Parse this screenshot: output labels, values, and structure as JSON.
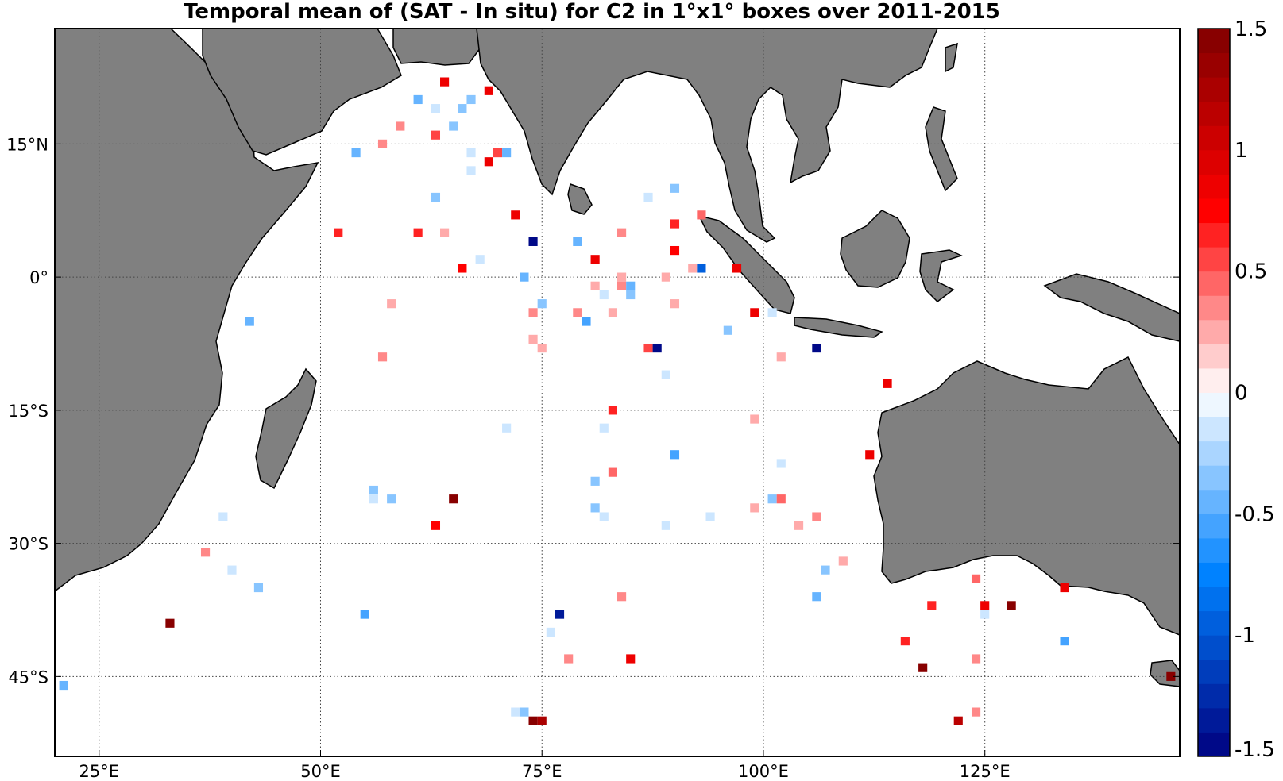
{
  "title": "Temporal mean of (SAT - In situ) for C2 in 1°x1° boxes over 2011-2015",
  "chart_data": {
    "type": "heatmap",
    "title": "Temporal mean of (SAT - In situ) for C2 in 1°x1° boxes over 2011-2015",
    "projection": "equirectangular",
    "lon_range": [
      20,
      147
    ],
    "lat_range": [
      -54,
      28
    ],
    "x_ticks": [
      {
        "value": 25,
        "label": "25°E"
      },
      {
        "value": 50,
        "label": "50°E"
      },
      {
        "value": 75,
        "label": "75°E"
      },
      {
        "value": 100,
        "label": "100°E"
      },
      {
        "value": 125,
        "label": "125°E"
      }
    ],
    "y_ticks": [
      {
        "value": 15,
        "label": "15°N"
      },
      {
        "value": 0,
        "label": "0°"
      },
      {
        "value": -15,
        "label": "15°S"
      },
      {
        "value": -30,
        "label": "30°S"
      },
      {
        "value": -45,
        "label": "45°S"
      }
    ],
    "grid": true,
    "land_color": "#808080",
    "colorbar": {
      "min": -1.5,
      "max": 1.5,
      "levels": 30,
      "placement": "right",
      "ticks": [
        {
          "value": 1.5,
          "label": "1.5"
        },
        {
          "value": 1,
          "label": "1"
        },
        {
          "value": 0.5,
          "label": "0.5"
        },
        {
          "value": 0,
          "label": "0"
        },
        {
          "value": -0.5,
          "label": "-0.5"
        },
        {
          "value": -1,
          "label": "-1"
        },
        {
          "value": -1.5,
          "label": "-1.5"
        }
      ]
    },
    "points": [
      {
        "lon": 61,
        "lat": 20,
        "v": -0.5
      },
      {
        "lon": 63,
        "lat": 19,
        "v": -0.1
      },
      {
        "lon": 64,
        "lat": 22,
        "v": 0.8
      },
      {
        "lon": 66,
        "lat": 19,
        "v": -0.4
      },
      {
        "lon": 67,
        "lat": 20,
        "v": -0.4
      },
      {
        "lon": 69,
        "lat": 21,
        "v": 0.9
      },
      {
        "lon": 59,
        "lat": 17,
        "v": 0.3
      },
      {
        "lon": 63,
        "lat": 16,
        "v": 0.5
      },
      {
        "lon": 65,
        "lat": 17,
        "v": -0.3
      },
      {
        "lon": 54,
        "lat": 14,
        "v": -0.5
      },
      {
        "lon": 57,
        "lat": 15,
        "v": 0.3
      },
      {
        "lon": 67,
        "lat": 14,
        "v": -0.1
      },
      {
        "lon": 67,
        "lat": 12,
        "v": -0.2
      },
      {
        "lon": 69,
        "lat": 13,
        "v": 0.9
      },
      {
        "lon": 70,
        "lat": 14,
        "v": 0.5
      },
      {
        "lon": 71,
        "lat": 14,
        "v": -0.5
      },
      {
        "lon": 63,
        "lat": 9,
        "v": -0.3
      },
      {
        "lon": 72,
        "lat": 7,
        "v": 0.9
      },
      {
        "lon": 52,
        "lat": 5,
        "v": 0.6
      },
      {
        "lon": 61,
        "lat": 5,
        "v": 0.6
      },
      {
        "lon": 64,
        "lat": 5,
        "v": 0.2
      },
      {
        "lon": 74,
        "lat": 4,
        "v": -1.5
      },
      {
        "lon": 79,
        "lat": 4,
        "v": -0.5
      },
      {
        "lon": 66,
        "lat": 1,
        "v": 0.7
      },
      {
        "lon": 68,
        "lat": 2,
        "v": -0.2
      },
      {
        "lon": 73,
        "lat": 0,
        "v": -0.5
      },
      {
        "lon": 81,
        "lat": 2,
        "v": 0.9
      },
      {
        "lon": 84,
        "lat": 5,
        "v": 0.3
      },
      {
        "lon": 87,
        "lat": 9,
        "v": -0.1
      },
      {
        "lon": 90,
        "lat": 10,
        "v": -0.4
      },
      {
        "lon": 90,
        "lat": 6,
        "v": 0.6
      },
      {
        "lon": 93,
        "lat": 7,
        "v": 0.4
      },
      {
        "lon": 90,
        "lat": 3,
        "v": 0.7
      },
      {
        "lon": 92,
        "lat": 1,
        "v": 0.2
      },
      {
        "lon": 93,
        "lat": 1,
        "v": -0.9
      },
      {
        "lon": 97,
        "lat": 1,
        "v": 0.8
      },
      {
        "lon": 84,
        "lat": 0,
        "v": 0.2
      },
      {
        "lon": 89,
        "lat": 0,
        "v": 0.2
      },
      {
        "lon": 81,
        "lat": -1,
        "v": 0.2
      },
      {
        "lon": 84,
        "lat": -1,
        "v": 0.3
      },
      {
        "lon": 85,
        "lat": -1,
        "v": -0.5
      },
      {
        "lon": 82,
        "lat": -2,
        "v": -0.1
      },
      {
        "lon": 85,
        "lat": -2,
        "v": -0.3
      },
      {
        "lon": 75,
        "lat": -3,
        "v": -0.3
      },
      {
        "lon": 74,
        "lat": -4,
        "v": 0.3
      },
      {
        "lon": 79,
        "lat": -4,
        "v": 0.3
      },
      {
        "lon": 80,
        "lat": -5,
        "v": -0.6
      },
      {
        "lon": 83,
        "lat": -4,
        "v": 0.2
      },
      {
        "lon": 90,
        "lat": -3,
        "v": 0.2
      },
      {
        "lon": 58,
        "lat": -3,
        "v": 0.2
      },
      {
        "lon": 42,
        "lat": -5,
        "v": -0.5
      },
      {
        "lon": 99,
        "lat": -4,
        "v": 0.9
      },
      {
        "lon": 101,
        "lat": -4,
        "v": -0.2
      },
      {
        "lon": 96,
        "lat": -6,
        "v": -0.4
      },
      {
        "lon": 74,
        "lat": -7,
        "v": 0.2
      },
      {
        "lon": 75,
        "lat": -8,
        "v": 0.2
      },
      {
        "lon": 87,
        "lat": -8,
        "v": 0.5
      },
      {
        "lon": 88,
        "lat": -8,
        "v": -1.5
      },
      {
        "lon": 106,
        "lat": -8,
        "v": -1.5
      },
      {
        "lon": 57,
        "lat": -9,
        "v": 0.3
      },
      {
        "lon": 102,
        "lat": -9,
        "v": 0.2
      },
      {
        "lon": 89,
        "lat": -11,
        "v": -0.1
      },
      {
        "lon": 114,
        "lat": -12,
        "v": 0.8
      },
      {
        "lon": 83,
        "lat": -15,
        "v": 0.6
      },
      {
        "lon": 71,
        "lat": -17,
        "v": -0.1
      },
      {
        "lon": 82,
        "lat": -17,
        "v": -0.2
      },
      {
        "lon": 99,
        "lat": -16,
        "v": 0.2
      },
      {
        "lon": 90,
        "lat": -20,
        "v": -0.6
      },
      {
        "lon": 112,
        "lat": -20,
        "v": 0.9
      },
      {
        "lon": 102,
        "lat": -21,
        "v": -0.2
      },
      {
        "lon": 83,
        "lat": -22,
        "v": 0.4
      },
      {
        "lon": 81,
        "lat": -23,
        "v": -0.3
      },
      {
        "lon": 56,
        "lat": -24,
        "v": -0.3
      },
      {
        "lon": 56,
        "lat": -25,
        "v": -0.1
      },
      {
        "lon": 58,
        "lat": -25,
        "v": -0.3
      },
      {
        "lon": 65,
        "lat": -25,
        "v": 1.4
      },
      {
        "lon": 101,
        "lat": -25,
        "v": -0.4
      },
      {
        "lon": 102,
        "lat": -25,
        "v": 0.4
      },
      {
        "lon": 81,
        "lat": -26,
        "v": -0.4
      },
      {
        "lon": 82,
        "lat": -27,
        "v": -0.2
      },
      {
        "lon": 94,
        "lat": -27,
        "v": -0.1
      },
      {
        "lon": 99,
        "lat": -26,
        "v": 0.2
      },
      {
        "lon": 106,
        "lat": -27,
        "v": 0.3
      },
      {
        "lon": 39,
        "lat": -27,
        "v": -0.1
      },
      {
        "lon": 63,
        "lat": -28,
        "v": 0.7
      },
      {
        "lon": 89,
        "lat": -28,
        "v": -0.1
      },
      {
        "lon": 104,
        "lat": -28,
        "v": 0.2
      },
      {
        "lon": 37,
        "lat": -31,
        "v": 0.3
      },
      {
        "lon": 109,
        "lat": -32,
        "v": 0.2
      },
      {
        "lon": 40,
        "lat": -33,
        "v": -0.1
      },
      {
        "lon": 107,
        "lat": -33,
        "v": -0.3
      },
      {
        "lon": 43,
        "lat": -35,
        "v": -0.4
      },
      {
        "lon": 106,
        "lat": -36,
        "v": -0.5
      },
      {
        "lon": 84,
        "lat": -36,
        "v": 0.3
      },
      {
        "lon": 124,
        "lat": -34,
        "v": 0.4
      },
      {
        "lon": 134,
        "lat": -35,
        "v": 0.9
      },
      {
        "lon": 119,
        "lat": -37,
        "v": 0.6
      },
      {
        "lon": 125,
        "lat": -37,
        "v": 0.9
      },
      {
        "lon": 128,
        "lat": -37,
        "v": 1.4
      },
      {
        "lon": 125,
        "lat": -38,
        "v": -0.2
      },
      {
        "lon": 33,
        "lat": -39,
        "v": 1.4
      },
      {
        "lon": 55,
        "lat": -38,
        "v": -0.6
      },
      {
        "lon": 77,
        "lat": -38,
        "v": -1.3
      },
      {
        "lon": 76,
        "lat": -40,
        "v": -0.1
      },
      {
        "lon": 116,
        "lat": -41,
        "v": 0.6
      },
      {
        "lon": 134,
        "lat": -41,
        "v": -0.6
      },
      {
        "lon": 78,
        "lat": -43,
        "v": 0.3
      },
      {
        "lon": 85,
        "lat": -43,
        "v": 0.8
      },
      {
        "lon": 124,
        "lat": -43,
        "v": 0.3
      },
      {
        "lon": 118,
        "lat": -44,
        "v": 1.4
      },
      {
        "lon": 146,
        "lat": -45,
        "v": 1.4
      },
      {
        "lon": 21,
        "lat": -46,
        "v": -0.5
      },
      {
        "lon": 72,
        "lat": -49,
        "v": -0.2
      },
      {
        "lon": 73,
        "lat": -49,
        "v": -0.3
      },
      {
        "lon": 74,
        "lat": -50,
        "v": 1.4
      },
      {
        "lon": 75,
        "lat": -50,
        "v": 1.2
      },
      {
        "lon": 122,
        "lat": -50,
        "v": 1.1
      },
      {
        "lon": 124,
        "lat": -49,
        "v": 0.3
      }
    ]
  }
}
